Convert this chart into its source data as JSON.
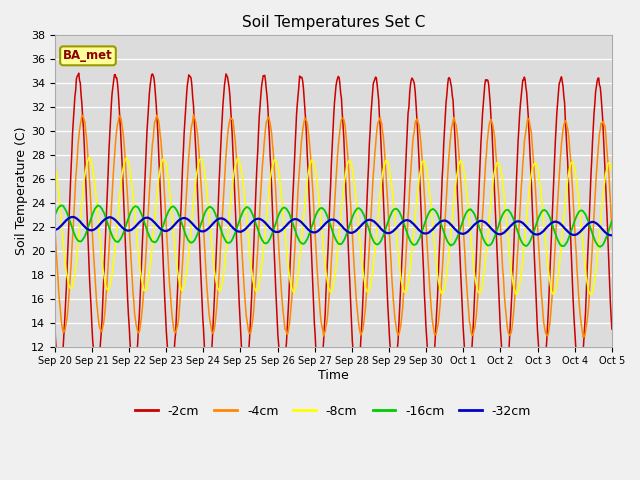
{
  "title": "Soil Temperatures Set C",
  "xlabel": "Time",
  "ylabel": "Soil Temperature (C)",
  "ylim": [
    12,
    38
  ],
  "yticks": [
    12,
    14,
    16,
    18,
    20,
    22,
    24,
    26,
    28,
    30,
    32,
    34,
    36,
    38
  ],
  "series_colors": [
    "#cc0000",
    "#ff8800",
    "#ffff00",
    "#00cc00",
    "#0000cc"
  ],
  "series_labels": [
    "-2cm",
    "-4cm",
    "-8cm",
    "-16cm",
    "-32cm"
  ],
  "fig_bg_color": "#f0f0f0",
  "plot_bg_color": "#dcdcdc",
  "annotation_text": "BA_met",
  "annotation_bg": "#ffff99",
  "annotation_border": "#999900",
  "n_days": 15,
  "mean_temp": 22.3,
  "amplitudes": [
    12.5,
    9.0,
    5.5,
    1.5,
    0.55
  ],
  "phase_shifts": [
    0.0,
    0.12,
    0.3,
    0.55,
    0.85
  ],
  "trend": -0.03,
  "points_per_day": 48
}
